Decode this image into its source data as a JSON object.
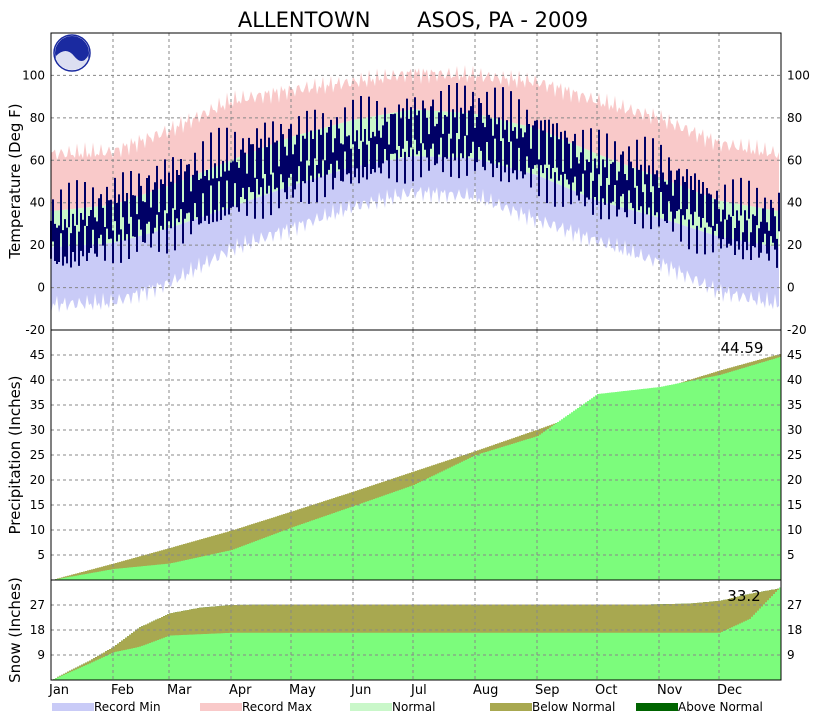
{
  "title": "ALLENTOWN       ASOS, PA - 2009",
  "colors": {
    "record_min": "#c9cbf7",
    "record_max": "#f9c9c9",
    "normal": "#c9f7c9",
    "actual_temp": "#000066",
    "below_normal": "#a8a850",
    "above_normal": "#006400",
    "actual_fill": "#7cfc7c",
    "grid": "#888888"
  },
  "legend": [
    {
      "key": "record_min",
      "label": "Record Min",
      "color": "#c9cbf7"
    },
    {
      "key": "record_max",
      "label": "Record Max",
      "color": "#f9c9c9"
    },
    {
      "key": "normal",
      "label": "Normal",
      "color": "#c9f7c9"
    },
    {
      "key": "below_normal",
      "label": "Below Normal",
      "color": "#a8a850"
    },
    {
      "key": "above_normal",
      "label": "Above Normal",
      "color": "#006400"
    }
  ],
  "chart_data": [
    {
      "type": "area",
      "ylabel": "Temperature (Deg F)",
      "ylim": [
        -20,
        120
      ],
      "yticks": [
        -20,
        0,
        20,
        40,
        60,
        80,
        100
      ],
      "grid": true,
      "months": [
        "Jan",
        "Feb",
        "Mar",
        "Apr",
        "May",
        "Jun",
        "Jul",
        "Aug",
        "Sep",
        "Oct",
        "Nov",
        "Dec"
      ],
      "series": [
        {
          "key": "record_max",
          "x": [
            1,
            32,
            60,
            91,
            121,
            152,
            182,
            213,
            244,
            274,
            305,
            335,
            365
          ],
          "values": [
            63,
            64,
            74,
            88,
            93,
            97,
            101,
            100,
            97,
            88,
            80,
            68,
            63
          ]
        },
        {
          "key": "normal_high",
          "x": [
            1,
            32,
            60,
            91,
            121,
            152,
            182,
            213,
            244,
            274,
            305,
            335,
            365
          ],
          "values": [
            36,
            39,
            48,
            60,
            71,
            79,
            84,
            82,
            75,
            63,
            52,
            41,
            36
          ]
        },
        {
          "key": "normal_low",
          "x": [
            1,
            32,
            60,
            91,
            121,
            152,
            182,
            213,
            244,
            274,
            305,
            335,
            365
          ],
          "values": [
            19,
            21,
            28,
            38,
            48,
            57,
            62,
            61,
            53,
            41,
            33,
            24,
            19
          ]
        },
        {
          "key": "record_min",
          "x": [
            1,
            32,
            60,
            91,
            121,
            152,
            182,
            213,
            244,
            274,
            305,
            335,
            365
          ],
          "values": [
            -8,
            -7,
            2,
            18,
            28,
            38,
            45,
            43,
            32,
            22,
            12,
            -2,
            -8
          ]
        },
        {
          "key": "actual_high",
          "x": [
            1,
            32,
            60,
            91,
            121,
            152,
            182,
            213,
            244,
            274,
            305,
            335,
            365
          ],
          "values": [
            32,
            40,
            50,
            62,
            70,
            74,
            80,
            84,
            74,
            60,
            56,
            38,
            34
          ]
        },
        {
          "key": "actual_low",
          "x": [
            1,
            32,
            60,
            91,
            121,
            152,
            182,
            213,
            244,
            274,
            305,
            335,
            365
          ],
          "values": [
            14,
            22,
            28,
            40,
            48,
            56,
            62,
            62,
            54,
            42,
            36,
            24,
            18
          ]
        }
      ]
    },
    {
      "type": "area",
      "ylabel": "Precipitation (Inches)",
      "ylim": [
        0,
        50
      ],
      "yticks": [
        5,
        10,
        15,
        20,
        25,
        30,
        35,
        40,
        45
      ],
      "annotation": "44.59",
      "series": [
        {
          "key": "normal",
          "x": [
            1,
            32,
            60,
            91,
            121,
            152,
            182,
            213,
            244,
            274,
            305,
            335,
            365
          ],
          "values": [
            0,
            3.3,
            6.4,
            9.9,
            13.7,
            17.7,
            21.7,
            25.8,
            30.1,
            34.4,
            38.2,
            41.9,
            45.2
          ]
        },
        {
          "key": "actual",
          "x": [
            1,
            32,
            60,
            91,
            121,
            152,
            182,
            213,
            244,
            274,
            305,
            335,
            365
          ],
          "values": [
            0,
            2.2,
            3.3,
            6.0,
            10.5,
            14.8,
            19.0,
            25.0,
            28.8,
            37.2,
            38.6,
            41.0,
            44.59
          ]
        }
      ]
    },
    {
      "type": "area",
      "ylabel": "Snow (Inches)",
      "ylim": [
        0,
        36
      ],
      "yticks": [
        9,
        18,
        27
      ],
      "annotation": "33.2",
      "series": [
        {
          "key": "normal",
          "x": [
            1,
            20,
            32,
            45,
            60,
            75,
            91,
            120,
            300,
            320,
            335,
            350,
            365
          ],
          "values": [
            0,
            7,
            12,
            19,
            24,
            26,
            27,
            27.2,
            27.2,
            27.5,
            28.5,
            31,
            33
          ]
        },
        {
          "key": "actual",
          "x": [
            1,
            20,
            32,
            42,
            45,
            60,
            91,
            300,
            335,
            350,
            365
          ],
          "values": [
            0,
            6,
            10,
            11.5,
            12,
            16,
            17,
            17,
            17,
            22,
            33.2
          ]
        }
      ]
    }
  ]
}
